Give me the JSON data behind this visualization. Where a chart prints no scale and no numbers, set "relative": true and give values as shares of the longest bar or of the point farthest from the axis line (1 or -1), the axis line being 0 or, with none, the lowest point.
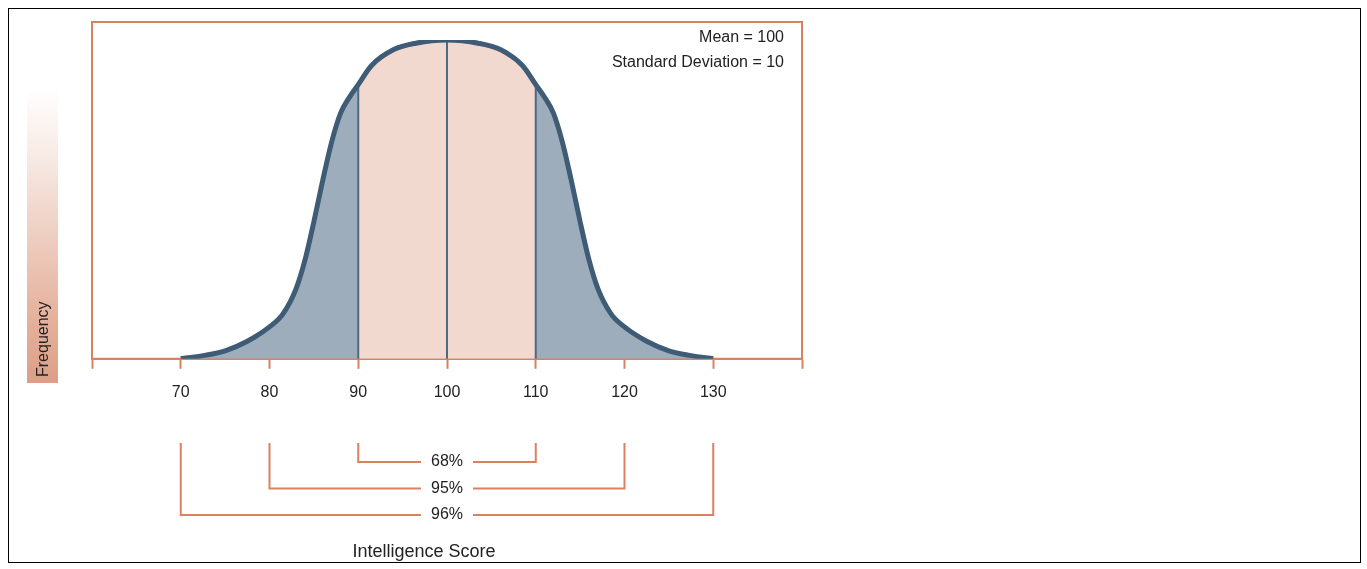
{
  "chart_data": {
    "type": "area",
    "relative": true,
    "ylabel": "Frequency",
    "xlim": [
      60,
      140
    ],
    "xticks": [
      {
        "value": 60,
        "label": null
      },
      70,
      80,
      90,
      100,
      110,
      120,
      130,
      {
        "value": 140,
        "label": null
      }
    ],
    "grid": false,
    "annotations": [
      "Mean = 100",
      "Standard Deviation = 10",
      "68%",
      "95%",
      "96%",
      "Intelligence Score"
    ],
    "ref_lines": [
      {
        "axis": "x",
        "value": 90,
        "color": "#4d6a82"
      },
      {
        "axis": "x",
        "value": 100,
        "color": "#4d6a82"
      },
      {
        "axis": "x",
        "value": 110,
        "color": "#4d6a82"
      }
    ],
    "series": [
      {
        "color": "#9eadbb",
        "x": [
          70,
          72.5,
          75,
          77.5,
          80,
          81.5,
          83,
          84,
          85,
          86,
          87,
          88,
          89,
          90
        ],
        "values": [
          0,
          0.01,
          0.025,
          0.055,
          0.1,
          0.14,
          0.22,
          0.31,
          0.43,
          0.56,
          0.68,
          0.77,
          0.82,
          0.86
        ]
      },
      {
        "color": "#f1d9cf",
        "x": [
          90,
          91.5,
          94,
          96.5,
          100,
          103.5,
          106,
          108.5,
          110
        ],
        "values": [
          0.86,
          0.92,
          0.97,
          0.99,
          1,
          0.99,
          0.97,
          0.92,
          0.86
        ]
      },
      {
        "color": "#9eadbb",
        "x": [
          110,
          111,
          112,
          113,
          114,
          115,
          116,
          117,
          118.5,
          120,
          122.5,
          125,
          127.5,
          130
        ],
        "values": [
          0.86,
          0.82,
          0.77,
          0.68,
          0.56,
          0.43,
          0.31,
          0.22,
          0.14,
          0.1,
          0.055,
          0.025,
          0.01,
          0
        ]
      },
      {
        "type": "line",
        "color": "#3e5c76",
        "x": [
          70,
          72.5,
          75,
          77.5,
          80,
          81.5,
          83,
          84,
          85,
          86,
          87,
          88,
          89,
          90,
          91.5,
          94,
          96.5,
          100,
          103.5,
          106,
          108.5,
          110,
          111,
          112,
          113,
          114,
          115,
          116,
          117,
          118.5,
          120,
          122.5,
          125,
          127.5,
          130
        ],
        "values": [
          0,
          0.01,
          0.025,
          0.055,
          0.1,
          0.14,
          0.22,
          0.31,
          0.43,
          0.56,
          0.68,
          0.77,
          0.82,
          0.86,
          0.92,
          0.97,
          0.99,
          1,
          0.99,
          0.97,
          0.92,
          0.86,
          0.82,
          0.77,
          0.68,
          0.56,
          0.43,
          0.31,
          0.22,
          0.14,
          0.1,
          0.055,
          0.025,
          0.01,
          0
        ]
      }
    ]
  }
}
